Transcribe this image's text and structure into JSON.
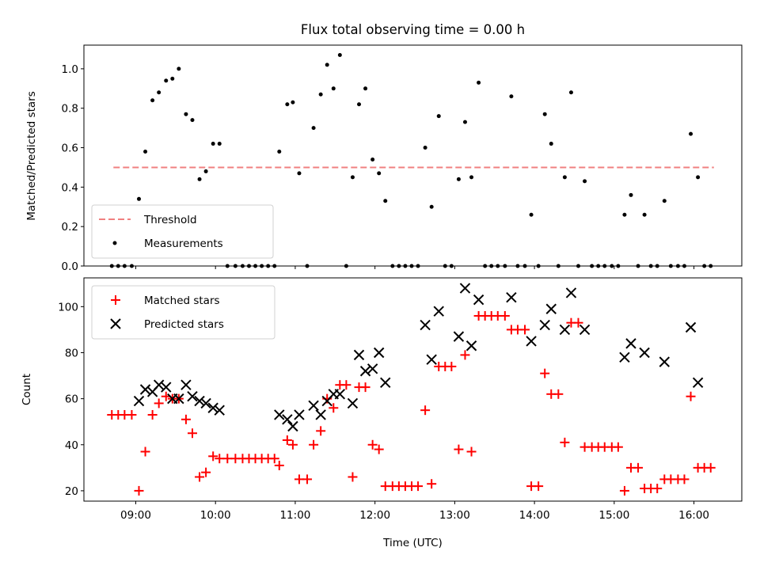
{
  "chart_data": [
    {
      "type": "scatter",
      "title": "Flux total observing time = 0.00 h",
      "ylabel": "Matched/Predicted stars",
      "xlim": [
        8.35,
        16.6
      ],
      "ylim": [
        0.0,
        1.12
      ],
      "yticks": [
        0.0,
        0.2,
        0.4,
        0.6,
        0.8,
        1.0
      ],
      "ytick_labels": [
        "0.0",
        "0.2",
        "0.4",
        "0.6",
        "0.8",
        "1.0"
      ],
      "threshold": {
        "name": "Threshold",
        "y": 0.5,
        "x_start": 8.72,
        "x_end": 16.25,
        "color": "#f08080"
      },
      "legend": {
        "placement": "lower-left",
        "entries": [
          "Threshold",
          "Measurements"
        ]
      },
      "series": [
        {
          "name": "Measurements",
          "color": "#000000",
          "x": [
            8.7,
            8.78,
            8.86,
            8.95,
            9.04,
            9.12,
            9.21,
            9.29,
            9.38,
            9.46,
            9.54,
            9.63,
            9.71,
            9.8,
            9.88,
            9.97,
            10.05,
            10.15,
            10.25,
            10.34,
            10.42,
            10.5,
            10.58,
            10.66,
            10.74,
            10.8,
            10.9,
            10.97,
            11.05,
            11.15,
            11.23,
            11.32,
            11.4,
            11.48,
            11.56,
            11.64,
            11.72,
            11.8,
            11.88,
            11.97,
            12.05,
            12.13,
            12.22,
            12.3,
            12.38,
            12.46,
            12.54,
            12.63,
            12.71,
            12.8,
            12.88,
            12.96,
            13.05,
            13.13,
            13.21,
            13.3,
            13.38,
            13.46,
            13.54,
            13.63,
            13.71,
            13.79,
            13.88,
            13.96,
            14.05,
            14.13,
            14.21,
            14.3,
            14.38,
            14.46,
            14.55,
            14.63,
            14.72,
            14.8,
            14.88,
            14.97,
            15.05,
            15.13,
            15.21,
            15.3,
            15.38,
            15.46,
            15.54,
            15.63,
            15.71,
            15.8,
            15.88,
            15.96,
            16.05,
            16.13,
            16.21
          ],
          "y": [
            0.0,
            0.0,
            0.0,
            0.0,
            0.34,
            0.58,
            0.84,
            0.88,
            0.94,
            0.95,
            1.0,
            0.77,
            0.74,
            0.44,
            0.48,
            0.62,
            0.62,
            0.0,
            0.0,
            0.0,
            0.0,
            0.0,
            0.0,
            0.0,
            0.0,
            0.58,
            0.82,
            0.83,
            0.47,
            0.0,
            0.7,
            0.87,
            1.02,
            0.9,
            1.07,
            0.0,
            0.45,
            0.82,
            0.9,
            0.54,
            0.47,
            0.33,
            0.0,
            0.0,
            0.0,
            0.0,
            0.0,
            0.6,
            0.3,
            0.76,
            0.0,
            0.0,
            0.44,
            0.73,
            0.45,
            0.93,
            0.0,
            0.0,
            0.0,
            0.0,
            0.86,
            0.0,
            0.0,
            0.26,
            0.0,
            0.77,
            0.62,
            0.0,
            0.45,
            0.88,
            0.0,
            0.43,
            0.0,
            0.0,
            0.0,
            0.0,
            0.0,
            0.26,
            0.36,
            0.0,
            0.26,
            0.0,
            0.0,
            0.33,
            0.0,
            0.0,
            0.0,
            0.67,
            0.45,
            0.0,
            0.0
          ]
        }
      ]
    },
    {
      "type": "scatter",
      "xlabel": "Time (UTC)",
      "ylabel": "Count",
      "xlim": [
        8.35,
        16.6
      ],
      "ylim": [
        15.5,
        112.5
      ],
      "yticks": [
        20,
        40,
        60,
        80,
        100
      ],
      "ytick_labels": [
        "20",
        "40",
        "60",
        "80",
        "100"
      ],
      "xticks": [
        9,
        10,
        11,
        12,
        13,
        14,
        15,
        16
      ],
      "xtick_labels": [
        "09:00",
        "10:00",
        "11:00",
        "12:00",
        "13:00",
        "14:00",
        "15:00",
        "16:00"
      ],
      "legend": {
        "placement": "upper-left",
        "entries": [
          "Matched stars",
          "Predicted stars"
        ]
      },
      "series": [
        {
          "name": "Matched stars",
          "marker": "plus",
          "color": "#ff0000",
          "x": [
            8.7,
            8.78,
            8.86,
            8.95,
            9.04,
            9.12,
            9.21,
            9.29,
            9.38,
            9.46,
            9.54,
            9.63,
            9.71,
            9.8,
            9.88,
            9.97,
            10.05,
            10.15,
            10.25,
            10.34,
            10.42,
            10.5,
            10.58,
            10.66,
            10.74,
            10.8,
            10.9,
            10.97,
            11.05,
            11.15,
            11.23,
            11.32,
            11.4,
            11.48,
            11.56,
            11.64,
            11.72,
            11.8,
            11.88,
            11.97,
            12.05,
            12.13,
            12.22,
            12.3,
            12.38,
            12.46,
            12.54,
            12.63,
            12.71,
            12.8,
            12.88,
            12.96,
            13.05,
            13.13,
            13.21,
            13.3,
            13.38,
            13.46,
            13.54,
            13.63,
            13.71,
            13.79,
            13.88,
            13.96,
            14.05,
            14.13,
            14.21,
            14.3,
            14.38,
            14.46,
            14.55,
            14.63,
            14.72,
            14.8,
            14.88,
            14.97,
            15.05,
            15.13,
            15.21,
            15.3,
            15.38,
            15.46,
            15.54,
            15.63,
            15.71,
            15.8,
            15.88,
            15.96,
            16.05,
            16.13,
            16.21
          ],
          "y": [
            53,
            53,
            53,
            53,
            20,
            37,
            53,
            58,
            61,
            60,
            60,
            51,
            45,
            26,
            28,
            35,
            34,
            34,
            34,
            34,
            34,
            34,
            34,
            34,
            34,
            31,
            42,
            40,
            25,
            25,
            40,
            46,
            60,
            56,
            66,
            66,
            26,
            65,
            65,
            40,
            38,
            22,
            22,
            22,
            22,
            22,
            22,
            55,
            23,
            74,
            74,
            74,
            38,
            79,
            37,
            96,
            96,
            96,
            96,
            96,
            90,
            90,
            90,
            22,
            22,
            71,
            62,
            62,
            41,
            93,
            93,
            39,
            39,
            39,
            39,
            39,
            39,
            20,
            30,
            30,
            21,
            21,
            21,
            25,
            25,
            25,
            25,
            61,
            30,
            30,
            30
          ]
        },
        {
          "name": "Predicted stars",
          "marker": "x",
          "color": "#000000",
          "x": [
            9.04,
            9.12,
            9.21,
            9.29,
            9.38,
            9.46,
            9.54,
            9.63,
            9.71,
            9.8,
            9.88,
            9.97,
            10.05,
            10.8,
            10.9,
            10.97,
            11.05,
            11.23,
            11.32,
            11.4,
            11.48,
            11.56,
            11.72,
            11.8,
            11.88,
            11.97,
            12.05,
            12.13,
            12.63,
            12.71,
            12.8,
            13.05,
            13.13,
            13.21,
            13.3,
            13.71,
            13.96,
            14.13,
            14.21,
            14.38,
            14.46,
            14.63,
            15.13,
            15.21,
            15.38,
            15.63,
            15.96,
            16.05
          ],
          "y": [
            59,
            64,
            63,
            66,
            65,
            60,
            60,
            66,
            61,
            59,
            58,
            56,
            55,
            53,
            51,
            48,
            53,
            57,
            53,
            59,
            62,
            62,
            58,
            79,
            72,
            73,
            80,
            67,
            92,
            77,
            98,
            87,
            108,
            83,
            103,
            104,
            85,
            92,
            99,
            90,
            106,
            90,
            78,
            84,
            80,
            76,
            91,
            67
          ]
        }
      ]
    }
  ]
}
